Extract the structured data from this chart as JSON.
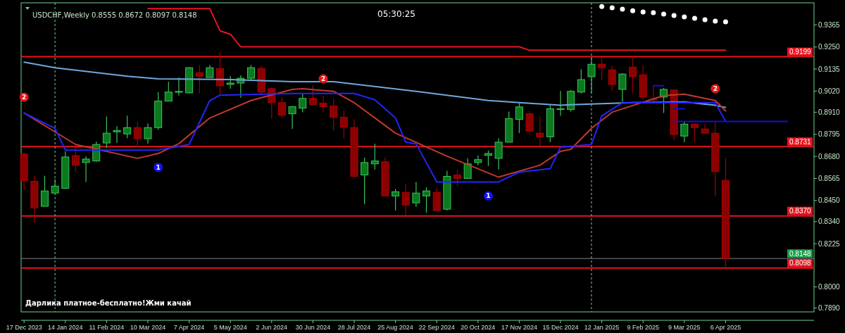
{
  "chart_data": {
    "type": "candlestick",
    "title": "USDCHF,Weekly  0.8555 0.8672 0.8097 0.8148",
    "x": [
      "2023-12-17",
      "2023-12-24",
      "2023-12-31",
      "2024-01-07",
      "2024-01-14",
      "2024-01-21",
      "2024-01-28",
      "2024-02-04",
      "2024-02-11",
      "2024-02-18",
      "2024-02-25",
      "2024-03-03",
      "2024-03-10",
      "2024-03-17",
      "2024-03-24",
      "2024-03-31",
      "2024-04-07",
      "2024-04-14",
      "2024-04-21",
      "2024-04-28",
      "2024-05-05",
      "2024-05-12",
      "2024-05-19",
      "2024-05-26",
      "2024-06-02",
      "2024-06-09",
      "2024-06-16",
      "2024-06-23",
      "2024-06-30",
      "2024-07-07",
      "2024-07-14",
      "2024-07-21",
      "2024-07-28",
      "2024-08-04",
      "2024-08-11",
      "2024-08-18",
      "2024-08-25",
      "2024-09-01",
      "2024-09-08",
      "2024-09-15",
      "2024-09-22",
      "2024-09-29",
      "2024-10-06",
      "2024-10-13",
      "2024-10-20",
      "2024-10-27",
      "2024-11-03",
      "2024-11-10",
      "2024-11-17",
      "2024-11-24",
      "2024-12-01",
      "2024-12-08",
      "2024-12-15",
      "2024-12-22",
      "2024-12-29",
      "2025-01-05",
      "2025-01-12",
      "2025-01-19",
      "2025-01-26",
      "2025-02-02",
      "2025-02-09",
      "2025-02-16",
      "2025-02-23",
      "2025-03-02",
      "2025-03-09",
      "2025-03-16",
      "2025-03-23",
      "2025-03-30",
      "2025-04-06"
    ],
    "ohlc": [
      [
        0.8692,
        0.8699,
        0.851,
        0.8554
      ],
      [
        0.855,
        0.8579,
        0.8333,
        0.8412
      ],
      [
        0.842,
        0.8579,
        0.842,
        0.85
      ],
      [
        0.8489,
        0.8561,
        0.8485,
        0.8525
      ],
      [
        0.8514,
        0.8706,
        0.851,
        0.8677
      ],
      [
        0.8684,
        0.8728,
        0.8601,
        0.8634
      ],
      [
        0.8648,
        0.8681,
        0.8547,
        0.8666
      ],
      [
        0.8656,
        0.8757,
        0.8652,
        0.8742
      ],
      [
        0.875,
        0.8888,
        0.8724,
        0.8801
      ],
      [
        0.8808,
        0.8837,
        0.875,
        0.8815
      ],
      [
        0.8797,
        0.8892,
        0.8775,
        0.883
      ],
      [
        0.883,
        0.8862,
        0.8728,
        0.8772
      ],
      [
        0.8772,
        0.8852,
        0.8746,
        0.883
      ],
      [
        0.883,
        0.9015,
        0.8819,
        0.8968
      ],
      [
        0.8968,
        0.9069,
        0.8968,
        0.9015
      ],
      [
        0.9015,
        0.9091,
        0.8997,
        0.9018
      ],
      [
        0.9011,
        0.9145,
        0.9008,
        0.9142
      ],
      [
        0.9116,
        0.9156,
        0.9011,
        0.9098
      ],
      [
        0.9091,
        0.9156,
        0.9091,
        0.9142
      ],
      [
        0.9138,
        0.9222,
        0.9004,
        0.9048
      ],
      [
        0.9055,
        0.9098,
        0.9033,
        0.9062
      ],
      [
        0.9062,
        0.9102,
        0.8986,
        0.9087
      ],
      [
        0.9087,
        0.9156,
        0.9073,
        0.9142
      ],
      [
        0.9138,
        0.9153,
        0.8997,
        0.9015
      ],
      [
        0.9033,
        0.904,
        0.8877,
        0.896
      ],
      [
        0.896,
        0.8989,
        0.888,
        0.8895
      ],
      [
        0.8902,
        0.8942,
        0.8823,
        0.8939
      ],
      [
        0.8931,
        0.9008,
        0.891,
        0.8982
      ],
      [
        0.8982,
        0.9051,
        0.8949,
        0.8949
      ],
      [
        0.8957,
        0.8997,
        0.891,
        0.8939
      ],
      [
        0.8942,
        0.8978,
        0.8815,
        0.8884
      ],
      [
        0.8884,
        0.892,
        0.8775,
        0.8833
      ],
      [
        0.883,
        0.8873,
        0.8576,
        0.8576
      ],
      [
        0.8583,
        0.8674,
        0.8431,
        0.8648
      ],
      [
        0.8641,
        0.8746,
        0.8612,
        0.8656
      ],
      [
        0.8652,
        0.8677,
        0.8474,
        0.8474
      ],
      [
        0.8474,
        0.851,
        0.8398,
        0.8496
      ],
      [
        0.8492,
        0.8536,
        0.8373,
        0.8427
      ],
      [
        0.8438,
        0.8547,
        0.8416,
        0.8489
      ],
      [
        0.8474,
        0.8518,
        0.8387,
        0.85
      ],
      [
        0.8492,
        0.8518,
        0.8398,
        0.8398
      ],
      [
        0.8405,
        0.8605,
        0.8398,
        0.8576
      ],
      [
        0.8583,
        0.8612,
        0.8525,
        0.8565
      ],
      [
        0.8565,
        0.867,
        0.8565,
        0.8641
      ],
      [
        0.8648,
        0.8685,
        0.8634,
        0.8663
      ],
      [
        0.8685,
        0.871,
        0.863,
        0.8695
      ],
      [
        0.867,
        0.8775,
        0.8612,
        0.8754
      ],
      [
        0.8754,
        0.8913,
        0.8754,
        0.8877
      ],
      [
        0.8873,
        0.8957,
        0.8801,
        0.8938
      ],
      [
        0.8902,
        0.8917,
        0.8794,
        0.8812
      ],
      [
        0.8801,
        0.8888,
        0.8736,
        0.8782
      ],
      [
        0.8782,
        0.8946,
        0.8754,
        0.8928
      ],
      [
        0.8924,
        0.9022,
        0.8891,
        0.8928
      ],
      [
        0.8924,
        0.9026,
        0.8913,
        0.9019
      ],
      [
        0.9015,
        0.9134,
        0.9008,
        0.908
      ],
      [
        0.9095,
        0.9196,
        0.9008,
        0.916
      ],
      [
        0.916,
        0.9196,
        0.908,
        0.9142
      ],
      [
        0.9131,
        0.9153,
        0.9022,
        0.9055
      ],
      [
        0.9029,
        0.9113,
        0.896,
        0.9109
      ],
      [
        0.9145,
        0.92,
        0.9008,
        0.9095
      ],
      [
        0.9105,
        0.9156,
        0.8975,
        0.8989
      ],
      [
        0.8978,
        0.9048,
        0.896,
        0.8975
      ],
      [
        0.8989,
        0.9037,
        0.8906,
        0.9029
      ],
      [
        0.9026,
        0.9026,
        0.8765,
        0.8794
      ],
      [
        0.8786,
        0.8862,
        0.8754,
        0.8848
      ],
      [
        0.8848,
        0.8848,
        0.8754,
        0.883
      ],
      [
        0.8823,
        0.8848,
        0.8797,
        0.8801
      ],
      [
        0.8801,
        0.8859,
        0.8474,
        0.8601
      ],
      [
        0.8555,
        0.8672,
        0.8097,
        0.8148
      ]
    ],
    "series": [
      {
        "type": "line",
        "color": "#6fa8dc",
        "x": [
          "2023-12-17",
          "2024-01-07",
          "2024-02-25",
          "2024-03-17",
          "2024-05-05",
          "2024-06-16",
          "2024-07-14",
          "2024-09-08",
          "2024-10-27",
          "2024-12-15",
          "2024-12-22",
          "2025-02-02",
          "2025-03-09",
          "2025-03-30",
          "2025-04-06"
        ],
        "values": [
          0.9171,
          0.9142,
          0.9098,
          0.9084,
          0.908,
          0.9069,
          0.9069,
          0.9019,
          0.8971,
          0.8946,
          0.8949,
          0.896,
          0.8964,
          0.8946,
          0.8935
        ]
      },
      {
        "type": "line",
        "color": "#c0392b",
        "x": [
          "2023-12-17",
          "2024-01-21",
          "2024-03-03",
          "2024-03-17",
          "2024-03-31",
          "2024-04-21",
          "2024-05-19",
          "2024-06-16",
          "2024-06-23",
          "2024-07-14",
          "2024-07-28",
          "2024-08-25",
          "2024-09-29",
          "2024-11-03",
          "2024-12-01",
          "2024-12-15",
          "2024-12-22",
          "2025-01-05",
          "2025-01-19",
          "2025-02-23",
          "2025-03-09",
          "2025-03-30",
          "2025-04-06"
        ],
        "values": [
          0.8906,
          0.8742,
          0.867,
          0.8695,
          0.8746,
          0.888,
          0.8971,
          0.9029,
          0.9033,
          0.9019,
          0.896,
          0.8801,
          0.8681,
          0.8572,
          0.8634,
          0.8706,
          0.8717,
          0.8826,
          0.891,
          0.8997,
          0.9004,
          0.8971,
          0.8917
        ]
      },
      {
        "type": "line",
        "color": "#2424ff",
        "x": [
          "2023-12-17",
          "2024-01-07",
          "2024-01-14",
          "2024-03-17",
          "2024-04-07",
          "2024-04-21",
          "2024-04-28",
          "2024-06-16",
          "2024-07-28",
          "2024-08-11",
          "2024-08-25",
          "2024-09-01",
          "2024-09-08",
          "2024-09-22",
          "2024-11-03",
          "2024-11-17",
          "2024-12-08",
          "2024-12-15",
          "2025-01-05",
          "2025-01-12",
          "2025-01-26",
          "2025-03-30",
          "2025-04-06"
        ],
        "values": [
          0.8906,
          0.8826,
          0.8713,
          0.8713,
          0.8742,
          0.8971,
          0.8999,
          0.9008,
          0.9008,
          0.8975,
          0.888,
          0.8754,
          0.8746,
          0.8547,
          0.8547,
          0.8598,
          0.8616,
          0.8728,
          0.8742,
          0.8891,
          0.896,
          0.896,
          0.8862
        ]
      },
      {
        "type": "line",
        "color": "#e8141e",
        "x": [
          "2024-03-10",
          "2024-04-21",
          "2024-04-28",
          "2024-05-05",
          "2024-05-12",
          "2024-11-17",
          "2024-11-24",
          "2025-04-06"
        ],
        "values": [
          0.945,
          0.945,
          0.9334,
          0.9316,
          0.9251,
          0.9251,
          0.9233,
          0.9233
        ]
      },
      {
        "type": "line",
        "color": "#1010e0",
        "x": [
          "2025-02-16",
          "2025-02-23",
          "2025-02-26",
          "2025-03-02",
          "2025-03-09"
        ],
        "values": [
          0.9048,
          0.9048,
          null,
          0.8928,
          0.8928
        ]
      },
      {
        "type": "line",
        "color": "#1010e0",
        "x": [
          "2025-03-02",
          "2025-05-18"
        ],
        "values": [
          0.8862,
          0.8862
        ]
      },
      {
        "type": "scatter",
        "color": "#ffffff",
        "marker": "circle",
        "x": [
          "2025-01-12",
          "2025-01-19",
          "2025-01-26",
          "2025-02-02",
          "2025-02-09",
          "2025-02-16",
          "2025-02-23",
          "2025-03-02",
          "2025-03-09",
          "2025-03-16",
          "2025-03-23",
          "2025-03-30",
          "2025-04-06"
        ],
        "values": [
          0.9461,
          0.9454,
          0.9447,
          0.9439,
          0.9432,
          0.9429,
          0.9421,
          0.9414,
          0.9407,
          0.9399,
          0.9392,
          0.9385,
          0.9381
        ]
      }
    ],
    "xlim": [
      "2023-12-15",
      "2025-06-05"
    ],
    "xticks": [
      {
        "value": "2023-12-17",
        "label": "17 Dec 2023"
      },
      {
        "value": "2024-01-14",
        "label": "14 Jan 2024"
      },
      {
        "value": "2024-02-11",
        "label": "11 Feb 2024"
      },
      {
        "value": "2024-03-10",
        "label": "10 Mar 2024"
      },
      {
        "value": "2024-04-07",
        "label": "7 Apr 2024"
      },
      {
        "value": "2024-05-05",
        "label": "5 May 2024"
      },
      {
        "value": "2024-06-02",
        "label": "2 Jun 2024"
      },
      {
        "value": "2024-06-30",
        "label": "30 Jun 2024"
      },
      {
        "value": "2024-07-28",
        "label": "28 Jul 2024"
      },
      {
        "value": "2024-08-25",
        "label": "25 Aug 2024"
      },
      {
        "value": "2024-09-22",
        "label": "22 Sep 2024"
      },
      {
        "value": "2024-10-20",
        "label": "20 Oct 2024"
      },
      {
        "value": "2024-11-17",
        "label": "17 Nov 2024"
      },
      {
        "value": "2024-12-15",
        "label": "15 Dec 2024"
      },
      {
        "value": "2025-01-12",
        "label": "12 Jan 2025"
      },
      {
        "value": "2025-02-09",
        "label": "9 Feb 2025"
      },
      {
        "value": "2025-03-09",
        "label": "9 Mar 2025"
      },
      {
        "value": "2025-04-06",
        "label": "6 Apr 2025"
      }
    ],
    "ylim": [
      0.787,
      0.948
    ],
    "yticks": [
      {
        "value": 0.9365,
        "label": "0.9365"
      },
      {
        "value": 0.925,
        "label": "0.9250"
      },
      {
        "value": 0.9135,
        "label": "0.9135"
      },
      {
        "value": 0.902,
        "label": "0.9020"
      },
      {
        "value": 0.891,
        "label": "0.8910"
      },
      {
        "value": 0.8795,
        "label": "0.8795"
      },
      {
        "value": 0.868,
        "label": "0.8680"
      },
      {
        "value": 0.8565,
        "label": "0.8565"
      },
      {
        "value": 0.845,
        "label": "0.8450"
      },
      {
        "value": 0.834,
        "label": "0.8340"
      },
      {
        "value": 0.8225,
        "label": "0.8225"
      },
      {
        "value": 0.8,
        "label": "0.8000"
      },
      {
        "value": 0.789,
        "label": "0.7890"
      }
    ],
    "ref_lines": [
      {
        "axis": "y",
        "value": 0.9199,
        "label": "0.9199",
        "color": "#e8141e"
      },
      {
        "axis": "y",
        "value": 0.8731,
        "label": "0.8731",
        "color": "#e8141e"
      },
      {
        "axis": "y",
        "value": 0.837,
        "label": "0.8370",
        "color": "#e8141e"
      },
      {
        "axis": "y",
        "value": 0.8098,
        "label": "0.8098",
        "color": "#e8141e"
      },
      {
        "axis": "y",
        "value": 0.8148,
        "label": "0.8148",
        "color": "#808080"
      },
      {
        "axis": "x",
        "value": "2024-01-07",
        "color": "#6fd38f",
        "line_style": "dashed"
      },
      {
        "axis": "x",
        "value": "2025-01-05",
        "color": "#6fd38f",
        "line_style": "dashed"
      }
    ],
    "annotations": [
      "05:30:25",
      "Дарлика платное-бесплатно!Жми качай",
      {
        "text": "2",
        "x": "2023-12-17",
        "y": 0.8989
      },
      {
        "text": "1",
        "x": "2024-03-17",
        "y": 0.8623
      },
      {
        "text": "2",
        "x": "2024-07-07",
        "y": 0.9084
      },
      {
        "text": "1",
        "x": "2024-10-27",
        "y": 0.8474
      },
      {
        "text": "2",
        "x": "2025-03-30",
        "y": 0.9033
      }
    ]
  }
}
